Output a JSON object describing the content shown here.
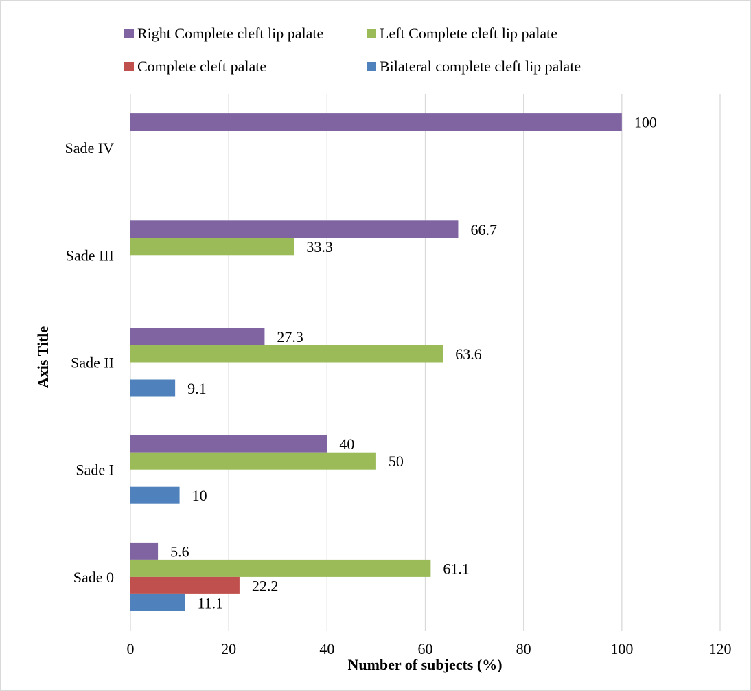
{
  "chart_data": {
    "type": "bar",
    "orientation": "horizontal",
    "categories": [
      "Sade 0",
      "Sade I",
      "Sade II",
      "Sade III",
      "Sade IV"
    ],
    "series": [
      {
        "name": "Right Complete cleft lip palate",
        "color": "#8064a2",
        "values": [
          5.6,
          40,
          27.3,
          66.7,
          100
        ]
      },
      {
        "name": "Left Complete cleft lip palate",
        "color": "#9bbb59",
        "values": [
          61.1,
          50,
          63.6,
          33.3,
          null
        ]
      },
      {
        "name": "Complete cleft palate",
        "color": "#c0504d",
        "values": [
          22.2,
          null,
          null,
          null,
          null
        ]
      },
      {
        "name": "Bilateral complete cleft lip palate",
        "color": "#4f81bd",
        "values": [
          11.1,
          10,
          9.1,
          null,
          null
        ]
      }
    ],
    "value_labels": {
      "Right Complete cleft lip palate": [
        "5.6",
        "40",
        "27.3",
        "66.7",
        "100"
      ],
      "Left Complete cleft lip palate": [
        "61.1",
        "50",
        "63.6",
        "33.3",
        ""
      ],
      "Complete cleft palate": [
        "22.2",
        "",
        "",
        "",
        ""
      ],
      "Bilateral complete cleft lip palate": [
        "11.1",
        "10",
        "9.1",
        "",
        ""
      ]
    },
    "xlabel": "Number of subjects (%)",
    "ylabel": "Axis Title",
    "xlim": [
      0,
      120
    ],
    "xticks": [
      0,
      20,
      40,
      60,
      80,
      100,
      120
    ],
    "xtick_labels": [
      "0",
      "20",
      "40",
      "60",
      "80",
      "100",
      "120"
    ],
    "grid": "vertical",
    "legend_position": "top"
  }
}
